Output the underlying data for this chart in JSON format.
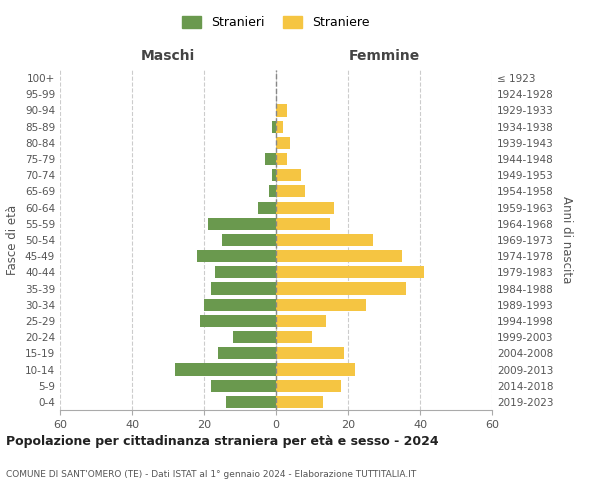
{
  "age_groups": [
    "0-4",
    "5-9",
    "10-14",
    "15-19",
    "20-24",
    "25-29",
    "30-34",
    "35-39",
    "40-44",
    "45-49",
    "50-54",
    "55-59",
    "60-64",
    "65-69",
    "70-74",
    "75-79",
    "80-84",
    "85-89",
    "90-94",
    "95-99",
    "100+"
  ],
  "birth_years": [
    "2019-2023",
    "2014-2018",
    "2009-2013",
    "2004-2008",
    "1999-2003",
    "1994-1998",
    "1989-1993",
    "1984-1988",
    "1979-1983",
    "1974-1978",
    "1969-1973",
    "1964-1968",
    "1959-1963",
    "1954-1958",
    "1949-1953",
    "1944-1948",
    "1939-1943",
    "1934-1938",
    "1929-1933",
    "1924-1928",
    "≤ 1923"
  ],
  "maschi": [
    14,
    18,
    28,
    16,
    12,
    21,
    20,
    18,
    17,
    22,
    15,
    19,
    5,
    2,
    1,
    3,
    0,
    1,
    0,
    0,
    0
  ],
  "femmine": [
    13,
    18,
    22,
    19,
    10,
    14,
    25,
    36,
    41,
    35,
    27,
    15,
    16,
    8,
    7,
    3,
    4,
    2,
    3,
    0,
    0
  ],
  "male_color": "#6a994e",
  "female_color": "#f5c542",
  "grid_color": "#cccccc",
  "title": "Popolazione per cittadinanza straniera per età e sesso - 2024",
  "subtitle": "COMUNE DI SANT'OMERO (TE) - Dati ISTAT al 1° gennaio 2024 - Elaborazione TUTTITALIA.IT",
  "xlabel_left": "Maschi",
  "xlabel_right": "Femmine",
  "ylabel_left": "Fasce di età",
  "ylabel_right": "Anni di nascita",
  "legend_male": "Stranieri",
  "legend_female": "Straniere",
  "xlim": 60
}
